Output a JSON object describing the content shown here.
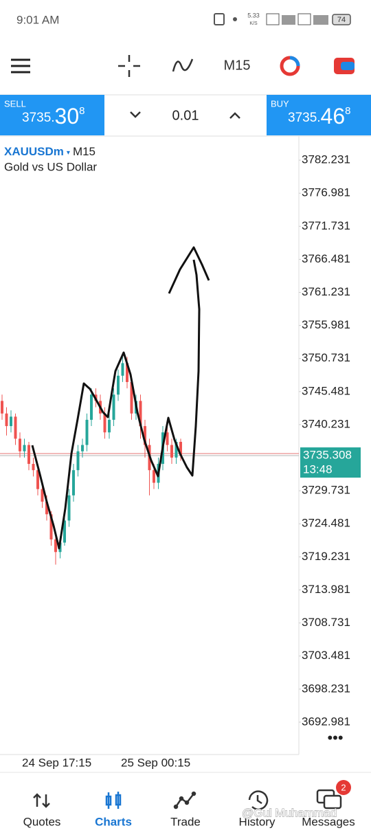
{
  "status_bar": {
    "time": "9:01 AM",
    "speed": "5.33",
    "speed_unit": "K/S",
    "battery": "74"
  },
  "toolbar": {
    "timeframe": "M15"
  },
  "trade_panel": {
    "sell": {
      "label": "SELL",
      "price_main": "3735.",
      "price_big": "30",
      "price_small": "8"
    },
    "lot": "0.01",
    "buy": {
      "label": "BUY",
      "price_main": "3735.",
      "price_big": "46",
      "price_small": "8"
    }
  },
  "chart_data": {
    "type": "candlestick",
    "symbol": "XAUUSDm",
    "timeframe": "M15",
    "description": "Gold vs US Dollar",
    "ylim": [
      3687.84,
      3786.06
    ],
    "yticks": [
      3782.231,
      3776.981,
      3771.731,
      3766.481,
      3761.231,
      3755.981,
      3750.731,
      3745.481,
      3740.231,
      3729.731,
      3724.481,
      3719.231,
      3713.981,
      3708.731,
      3703.481,
      3698.231,
      3692.981
    ],
    "current_price": 3735.308,
    "countdown": "13:48",
    "x_labels": [
      "24 Sep 17:15",
      "25 Sep 00:15"
    ],
    "up_color": "#26a69a",
    "down_color": "#ef5350",
    "candles": [
      {
        "o": 3744,
        "h": 3745,
        "l": 3741,
        "c": 3742
      },
      {
        "o": 3742,
        "h": 3743,
        "l": 3738.5,
        "c": 3740
      },
      {
        "o": 3740,
        "h": 3742.5,
        "l": 3739,
        "c": 3741.5
      },
      {
        "o": 3741.5,
        "h": 3742,
        "l": 3737,
        "c": 3738
      },
      {
        "o": 3738,
        "h": 3739,
        "l": 3735,
        "c": 3736
      },
      {
        "o": 3736,
        "h": 3738,
        "l": 3735,
        "c": 3737
      },
      {
        "o": 3737,
        "h": 3737.5,
        "l": 3733,
        "c": 3734
      },
      {
        "o": 3734,
        "h": 3735,
        "l": 3732,
        "c": 3733
      },
      {
        "o": 3733,
        "h": 3733.5,
        "l": 3729,
        "c": 3730
      },
      {
        "o": 3730,
        "h": 3731,
        "l": 3727,
        "c": 3728
      },
      {
        "o": 3728,
        "h": 3729,
        "l": 3725,
        "c": 3726
      },
      {
        "o": 3726,
        "h": 3726.5,
        "l": 3721,
        "c": 3722
      },
      {
        "o": 3722,
        "h": 3723,
        "l": 3718,
        "c": 3720
      },
      {
        "o": 3720,
        "h": 3722.5,
        "l": 3719,
        "c": 3721.5
      },
      {
        "o": 3721.5,
        "h": 3726,
        "l": 3721,
        "c": 3725
      },
      {
        "o": 3725,
        "h": 3730,
        "l": 3724,
        "c": 3729
      },
      {
        "o": 3729,
        "h": 3734,
        "l": 3728,
        "c": 3733
      },
      {
        "o": 3733,
        "h": 3737,
        "l": 3732,
        "c": 3736
      },
      {
        "o": 3736,
        "h": 3738,
        "l": 3735,
        "c": 3737
      },
      {
        "o": 3737,
        "h": 3742,
        "l": 3736,
        "c": 3741
      },
      {
        "o": 3741,
        "h": 3746,
        "l": 3740,
        "c": 3745
      },
      {
        "o": 3745,
        "h": 3746,
        "l": 3743,
        "c": 3744
      },
      {
        "o": 3744,
        "h": 3745,
        "l": 3741,
        "c": 3742
      },
      {
        "o": 3742,
        "h": 3743,
        "l": 3738,
        "c": 3739
      },
      {
        "o": 3739,
        "h": 3742,
        "l": 3738,
        "c": 3741
      },
      {
        "o": 3741,
        "h": 3746,
        "l": 3740,
        "c": 3745
      },
      {
        "o": 3745,
        "h": 3749,
        "l": 3744,
        "c": 3748
      },
      {
        "o": 3748,
        "h": 3751,
        "l": 3747,
        "c": 3750
      },
      {
        "o": 3750,
        "h": 3751,
        "l": 3746,
        "c": 3747
      },
      {
        "o": 3747,
        "h": 3748,
        "l": 3741,
        "c": 3742
      },
      {
        "o": 3742,
        "h": 3745,
        "l": 3741,
        "c": 3744
      },
      {
        "o": 3744,
        "h": 3745,
        "l": 3738,
        "c": 3740
      },
      {
        "o": 3740,
        "h": 3741,
        "l": 3735,
        "c": 3737
      },
      {
        "o": 3737,
        "h": 3738,
        "l": 3729,
        "c": 3733
      },
      {
        "o": 3733,
        "h": 3734,
        "l": 3730,
        "c": 3731
      },
      {
        "o": 3731,
        "h": 3735,
        "l": 3730,
        "c": 3734
      },
      {
        "o": 3734,
        "h": 3740,
        "l": 3733,
        "c": 3739
      },
      {
        "o": 3739,
        "h": 3740,
        "l": 3736,
        "c": 3737
      },
      {
        "o": 3737,
        "h": 3738,
        "l": 3734,
        "c": 3735
      },
      {
        "o": 3735,
        "h": 3738,
        "l": 3734,
        "c": 3737.5
      },
      {
        "o": 3737.5,
        "h": 3738,
        "l": 3734.5,
        "c": 3735.3
      }
    ]
  },
  "bottom_nav": {
    "items": [
      "Quotes",
      "Charts",
      "Trade",
      "History",
      "Messages"
    ],
    "active": 1,
    "messages_badge": "2"
  },
  "watermark": "@Gul Muhammad"
}
